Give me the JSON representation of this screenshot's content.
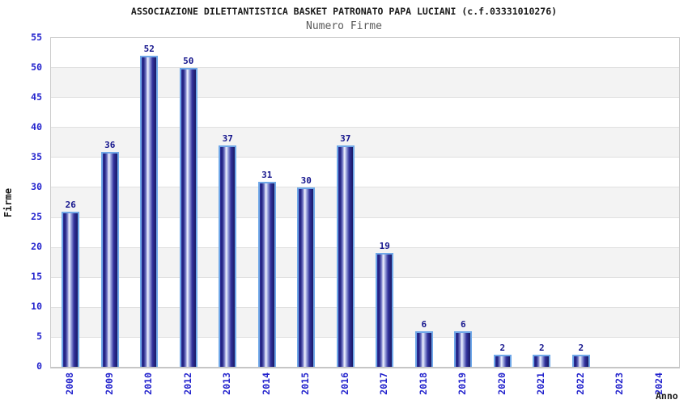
{
  "header": {
    "title": "ASSOCIAZIONE DILETTANTISTICA BASKET PATRONATO PAPA LUCIANI (c.f.03331010276)",
    "subtitle": "Numero Firme"
  },
  "chart_data": {
    "type": "bar",
    "title": "ASSOCIAZIONE DILETTANTISTICA BASKET PATRONATO PAPA LUCIANI (c.f.03331010276)",
    "subtitle": "Numero Firme",
    "xlabel": "Anno",
    "ylabel": "Firme",
    "categories": [
      "2008",
      "2009",
      "2010",
      "2012",
      "2013",
      "2014",
      "2015",
      "2016",
      "2017",
      "2018",
      "2019",
      "2020",
      "2021",
      "2022",
      "2023",
      "2024"
    ],
    "values": [
      26,
      36,
      52,
      50,
      37,
      31,
      30,
      37,
      19,
      6,
      6,
      2,
      2,
      2,
      null,
      null
    ],
    "ylim": [
      0,
      55
    ],
    "ytick_step": 5,
    "yticks": [
      0,
      5,
      10,
      15,
      20,
      25,
      30,
      35,
      40,
      45,
      50,
      55
    ],
    "grid": true,
    "legend": null,
    "colors": {
      "bar_dark": "#191965",
      "bar_highlight": "#f2f5ff",
      "bar_border": "#70a8e8",
      "value_label": "#14148c",
      "tick_label": "#2323cd",
      "band_gray": "#f3f3f3",
      "band_white": "#ffffff",
      "gridline": "#e0e0e0",
      "plot_border": "#cccccc",
      "title_color": "#1a1a1a",
      "subtitle_color": "#5a5a5a"
    }
  }
}
